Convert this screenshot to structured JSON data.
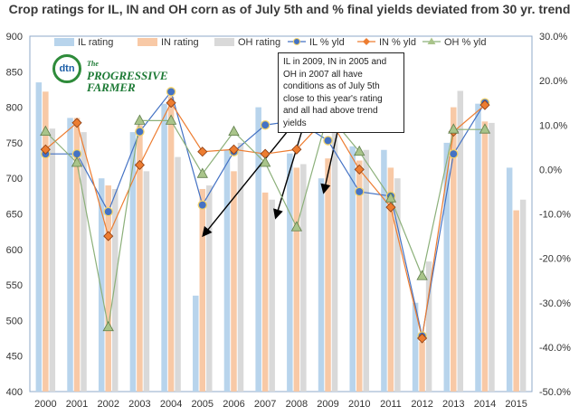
{
  "title": "Crop ratings for IL, IN and OH corn as of July 5th and % final yields deviated from 30 yr. trend",
  "annotation": "IL in 2009, IN in 2005 and OH in 2007 all have conditions as of July 5th close to this year's rating and all had above trend yields",
  "logo": {
    "top_text": "The",
    "main_text": "PROGRESSIVE FARMER",
    "circle_text": "dtn"
  },
  "colors": {
    "il_bar": "#b8d4ec",
    "in_bar": "#f8c9a6",
    "oh_bar": "#d9d9d9",
    "il_line": "#4472c4",
    "in_line": "#ed7d31",
    "oh_line": "#8cb07a",
    "oh_marker": "#a9c48a",
    "frame": "#8fa8c8"
  },
  "chart_data": {
    "type": "bar+line",
    "categories": [
      "2000",
      "2001",
      "2002",
      "2003",
      "2004",
      "2005",
      "2006",
      "2007",
      "2008",
      "2009",
      "2010",
      "2011",
      "2012",
      "2013",
      "2014",
      "2015"
    ],
    "left_axis": {
      "min": 400,
      "max": 900,
      "step": 50
    },
    "right_axis": {
      "min": -50,
      "max": 30,
      "step": 10,
      "unit": "%"
    },
    "bars": [
      {
        "name": "IL rating",
        "values": [
          835,
          785,
          700,
          765,
          805,
          535,
          740,
          800,
          735,
          700,
          745,
          740,
          525,
          750,
          805,
          715
        ]
      },
      {
        "name": "IN rating",
        "values": [
          822,
          785,
          690,
          775,
          815,
          685,
          710,
          680,
          715,
          728,
          725,
          715,
          470,
          800,
          780,
          655
        ]
      },
      {
        "name": "OH rating",
        "values": [
          770,
          765,
          685,
          710,
          730,
          690,
          750,
          670,
          720,
          765,
          740,
          700,
          583,
          823,
          778,
          670
        ]
      }
    ],
    "lines": [
      {
        "name": "IL % yld",
        "values": [
          3.5,
          3.5,
          -9.5,
          8.5,
          17.5,
          -8,
          4,
          10,
          11,
          6.5,
          -5,
          -6,
          -37.5,
          3.5,
          15
        ]
      },
      {
        "name": "IN % yld",
        "values": [
          4.5,
          10.5,
          -15,
          1,
          15,
          4,
          4.5,
          3.5,
          4.5,
          12,
          0,
          -8.5,
          -38,
          8.5,
          14.5
        ]
      },
      {
        "name": "OH % yld",
        "values": [
          8.5,
          1.5,
          -35.5,
          11,
          11,
          -1,
          8.5,
          1.5,
          -13,
          12.5,
          4,
          -6.5,
          -24,
          9,
          9
        ]
      }
    ]
  }
}
